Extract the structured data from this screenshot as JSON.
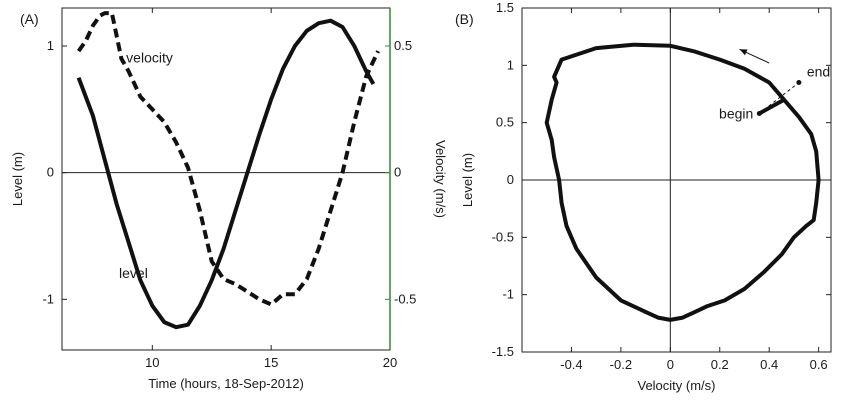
{
  "chart_data": [
    {
      "panel_label": "(A)",
      "type": "line",
      "xlabel": "Time (hours, 18-Sep-2012)",
      "ylabel": "Level (m)",
      "ylabel_right": "Velocity (m/s)",
      "xlim": [
        6.2,
        20
      ],
      "ylim": [
        -1.4,
        1.3
      ],
      "ylim_right": [
        -0.7,
        0.65
      ],
      "x_ticks": [
        10,
        15,
        20
      ],
      "y_ticks": [
        -1,
        0,
        1
      ],
      "y_ticks_right": [
        -0.5,
        0,
        0.5
      ],
      "right_axis_color": "#2e8b2e",
      "series": [
        {
          "name": "level",
          "axis": "left",
          "style": "solid",
          "x": [
            6.9,
            7.5,
            8.0,
            8.5,
            9.0,
            9.5,
            10.0,
            10.5,
            11.0,
            11.5,
            12.0,
            12.5,
            13.0,
            13.5,
            14.0,
            14.5,
            15.0,
            15.5,
            16.0,
            16.5,
            17.0,
            17.5,
            18.0,
            18.5,
            19.0,
            19.3
          ],
          "y": [
            0.75,
            0.45,
            0.1,
            -0.25,
            -0.55,
            -0.85,
            -1.05,
            -1.18,
            -1.22,
            -1.2,
            -1.05,
            -0.85,
            -0.6,
            -0.3,
            0.0,
            0.3,
            0.58,
            0.82,
            1.0,
            1.12,
            1.18,
            1.2,
            1.15,
            1.0,
            0.8,
            0.7
          ]
        },
        {
          "name": "velocity",
          "axis": "right",
          "style": "dashed",
          "x": [
            6.9,
            7.2,
            7.5,
            7.8,
            8.0,
            8.3,
            8.7,
            9.0,
            9.5,
            10.0,
            10.5,
            11.0,
            11.5,
            12.0,
            12.5,
            13.0,
            13.5,
            14.0,
            14.5,
            15.0,
            15.5,
            16.0,
            16.5,
            17.0,
            17.5,
            18.0,
            18.5,
            19.0,
            19.5
          ],
          "y": [
            0.48,
            0.52,
            0.58,
            0.62,
            0.63,
            0.63,
            0.45,
            0.4,
            0.3,
            0.25,
            0.2,
            0.12,
            0.02,
            -0.15,
            -0.35,
            -0.42,
            -0.44,
            -0.47,
            -0.5,
            -0.52,
            -0.48,
            -0.48,
            -0.42,
            -0.3,
            -0.15,
            0.0,
            0.2,
            0.38,
            0.48
          ]
        }
      ],
      "annotations": [
        {
          "text": "velocity",
          "x": 8.9,
          "y_right": 0.45
        },
        {
          "text": "level",
          "x": 8.6,
          "y": -0.8
        }
      ]
    },
    {
      "panel_label": "(B)",
      "type": "line",
      "xlabel": "Velocity (m/s)",
      "ylabel": "Level (m)",
      "xlim": [
        -0.6,
        0.65
      ],
      "ylim": [
        -1.5,
        1.5
      ],
      "x_ticks": [
        -0.4,
        -0.2,
        0,
        0.2,
        0.4,
        0.6
      ],
      "y_ticks": [
        -1.5,
        -1,
        -0.5,
        0,
        0.5,
        1,
        1.5
      ],
      "series": [
        {
          "name": "",
          "style": "solid",
          "x": [
            0.36,
            0.46,
            0.52,
            0.57,
            0.59,
            0.6,
            0.59,
            0.58,
            0.55,
            0.5,
            0.45,
            0.38,
            0.3,
            0.22,
            0.15,
            0.1,
            0.05,
            0.0,
            -0.05,
            -0.1,
            -0.2,
            -0.3,
            -0.38,
            -0.42,
            -0.44,
            -0.45,
            -0.47,
            -0.48,
            -0.5,
            -0.48,
            -0.46,
            -0.47,
            -0.44,
            -0.3,
            -0.15,
            0.0,
            0.1,
            0.2,
            0.3,
            0.4,
            0.46
          ],
          "y": [
            0.58,
            0.7,
            0.55,
            0.4,
            0.25,
            0.0,
            -0.2,
            -0.35,
            -0.4,
            -0.5,
            -0.65,
            -0.8,
            -0.95,
            -1.05,
            -1.1,
            -1.15,
            -1.2,
            -1.22,
            -1.2,
            -1.15,
            -1.05,
            -0.85,
            -0.6,
            -0.4,
            -0.2,
            0.0,
            0.2,
            0.35,
            0.5,
            0.7,
            0.85,
            0.9,
            1.05,
            1.15,
            1.18,
            1.17,
            1.12,
            1.05,
            0.97,
            0.85,
            0.7
          ]
        }
      ],
      "annotations": [
        {
          "text": "begin",
          "x": 0.36,
          "y": 0.58
        },
        {
          "text": "end",
          "x": 0.52,
          "y": 0.85
        }
      ]
    }
  ]
}
